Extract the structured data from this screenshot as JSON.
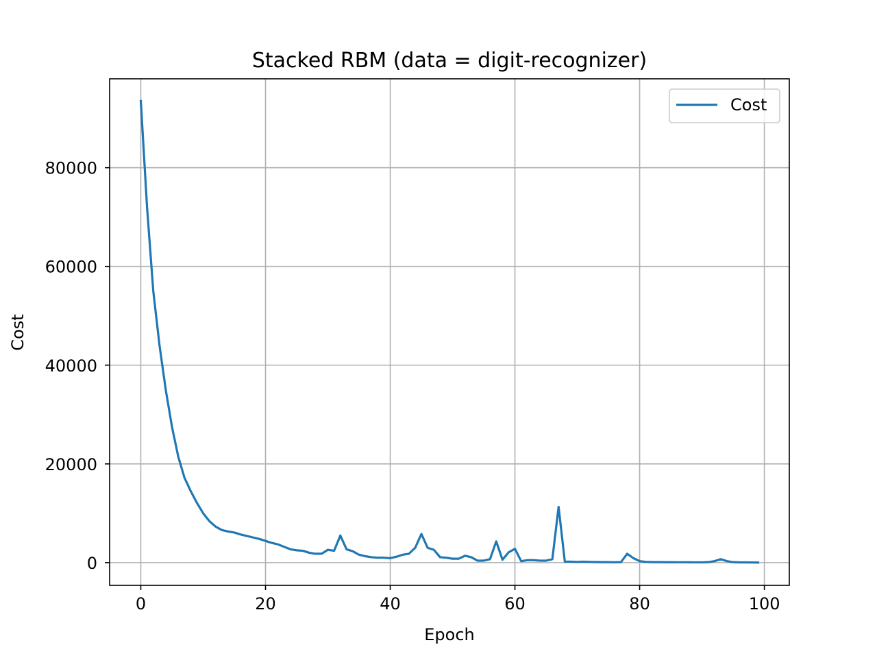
{
  "chart_data": {
    "type": "line",
    "title": "Stacked RBM (data = digit-recognizer)",
    "xlabel": "Epoch",
    "ylabel": "Cost",
    "xlim": [
      -5,
      104
    ],
    "ylim": [
      -4600,
      98000
    ],
    "xticks": [
      0,
      20,
      40,
      60,
      80,
      100
    ],
    "yticks": [
      0,
      20000,
      40000,
      60000,
      80000
    ],
    "grid": true,
    "legend": "top-right",
    "series": [
      {
        "name": "Cost",
        "color": "#1f77b4",
        "x": [
          0,
          1,
          2,
          3,
          4,
          5,
          6,
          7,
          8,
          9,
          10,
          11,
          12,
          13,
          14,
          15,
          16,
          17,
          18,
          19,
          20,
          21,
          22,
          23,
          24,
          25,
          26,
          27,
          28,
          29,
          30,
          31,
          32,
          33,
          34,
          35,
          36,
          37,
          38,
          39,
          40,
          41,
          42,
          43,
          44,
          45,
          46,
          47,
          48,
          49,
          50,
          51,
          52,
          53,
          54,
          55,
          56,
          57,
          58,
          59,
          60,
          61,
          62,
          63,
          64,
          65,
          66,
          67,
          68,
          69,
          70,
          71,
          72,
          73,
          74,
          75,
          76,
          77,
          78,
          79,
          80,
          81,
          82,
          83,
          84,
          85,
          86,
          87,
          88,
          89,
          90,
          91,
          92,
          93,
          94,
          95,
          96,
          97,
          98,
          99
        ],
        "y": [
          93500,
          72000,
          55000,
          44000,
          35000,
          27500,
          21500,
          17200,
          14500,
          12100,
          10000,
          8400,
          7300,
          6600,
          6300,
          6100,
          5700,
          5400,
          5100,
          4800,
          4400,
          4000,
          3700,
          3200,
          2700,
          2500,
          2400,
          2000,
          1800,
          1800,
          2600,
          2400,
          5500,
          2700,
          2300,
          1600,
          1300,
          1100,
          1000,
          1000,
          900,
          1200,
          1600,
          1800,
          3000,
          5800,
          3000,
          2600,
          1100,
          1000,
          800,
          800,
          1400,
          1100,
          400,
          400,
          700,
          4300,
          600,
          2100,
          2800,
          300,
          500,
          500,
          400,
          400,
          700,
          11300,
          200,
          200,
          150,
          200,
          150,
          120,
          100,
          100,
          80,
          100,
          1800,
          900,
          300,
          150,
          100,
          100,
          90,
          90,
          80,
          80,
          70,
          60,
          60,
          100,
          300,
          700,
          300,
          100,
          50,
          50,
          30,
          20
        ]
      }
    ]
  }
}
